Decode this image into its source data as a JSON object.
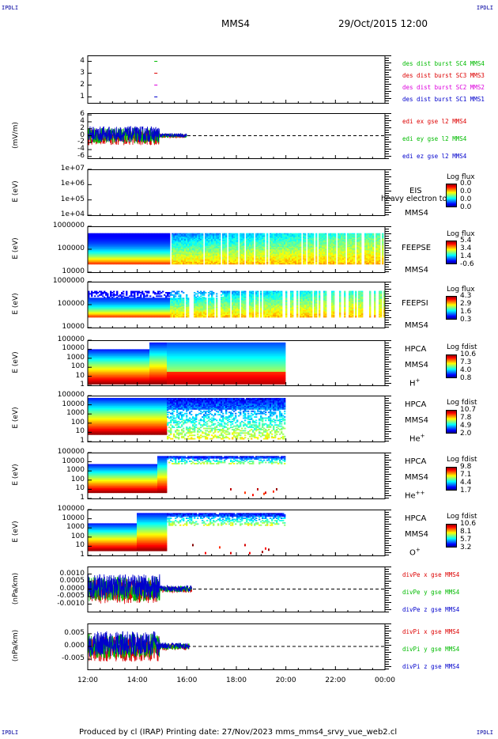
{
  "header": {
    "corner_left": "IPDLI",
    "corner_right": "IPDLI",
    "spacecraft": "MMS4",
    "date_time": "29/Oct/2015 12:00"
  },
  "footer": {
    "text": "Produced by cl (IRAP)   Printing date: 27/Nov/2023   mms_mms4_srvy_vue_web2.cl",
    "corner_left": "IPDLI",
    "corner_right": "IPDLI"
  },
  "x_axis": {
    "ticks": [
      "12:00",
      "14:00",
      "16:00",
      "18:00",
      "20:00",
      "22:00",
      "00:00"
    ]
  },
  "chart_data": [
    {
      "type": "scatter",
      "panel": "burst",
      "y_ticks": [
        "4",
        "3",
        "2",
        "1"
      ],
      "ylim": [
        0.5,
        4.5
      ],
      "series": [
        {
          "name": "des dist burst SC1 MMS1",
          "color": "#0000cc",
          "x_hours": [
            14.75
          ],
          "y": [
            1
          ]
        },
        {
          "name": "des dist burst SC2 MMS2",
          "color": "#dd00dd",
          "x_hours": [
            14.75
          ],
          "y": [
            2
          ]
        },
        {
          "name": "des dist burst SC3 MMS3",
          "color": "#dd0000",
          "x_hours": [
            14.75
          ],
          "y": [
            3
          ]
        },
        {
          "name": "des dist burst SC4 MMS4",
          "color": "#00bb00",
          "x_hours": [
            14.75
          ],
          "y": [
            4
          ]
        }
      ]
    },
    {
      "type": "line",
      "panel": "edi",
      "ylabel": "(mV/m)",
      "y_ticks": [
        "6",
        "4",
        "2",
        "0",
        "-2",
        "-4",
        "-6"
      ],
      "ylim": [
        -6.5,
        6.5
      ],
      "x_range_hours": [
        12.0,
        16.0
      ],
      "series": [
        {
          "name": "edi ex gse l2 MMS4",
          "color": "#dd0000"
        },
        {
          "name": "edi ey gse l2 MMS4",
          "color": "#00bb00"
        },
        {
          "name": "edi ez gse l2 MMS4",
          "color": "#0000cc"
        }
      ]
    },
    {
      "type": "heatmap",
      "panel": "eis",
      "ylabel": "E (eV)",
      "y_ticks": [
        "1e+07",
        "1e+06",
        "1e+05",
        "1e+04"
      ],
      "instrument": "EIS",
      "overlay_text": "heavy electron to",
      "spacecraft": "MMS4",
      "colorbar": {
        "title": "Log flux",
        "values": [
          "0.0",
          "0.0",
          "0.0",
          "0.0"
        ]
      }
    },
    {
      "type": "heatmap",
      "panel": "feeps_e",
      "ylabel": "E (eV)",
      "y_ticks": [
        "1000000",
        "100000",
        "10000"
      ],
      "instrument": "FEEPSE",
      "spacecraft": "MMS4",
      "colorbar": {
        "title": "Log flux",
        "values": [
          "5.4",
          "3.4",
          "1.4",
          "-0.6"
        ]
      }
    },
    {
      "type": "heatmap",
      "panel": "feeps_i",
      "ylabel": "E (eV)",
      "y_ticks": [
        "1000000",
        "100000",
        "10000"
      ],
      "instrument": "FEEPSI",
      "spacecraft": "MMS4",
      "colorbar": {
        "title": "Log flux",
        "values": [
          "4.3",
          "2.9",
          "1.6",
          "0.3"
        ]
      }
    },
    {
      "type": "heatmap",
      "panel": "hpca_h",
      "ylabel": "E (eV)",
      "y_ticks": [
        "100000",
        "10000",
        "1000",
        "100",
        "10",
        "1"
      ],
      "instrument": "HPCA",
      "spacecraft": "MMS4",
      "species": "H",
      "charge": "+",
      "data_end_hour": 20.0,
      "colorbar": {
        "title": "Log fdist",
        "values": [
          "10.6",
          "7.3",
          "4.0",
          "0.8"
        ]
      }
    },
    {
      "type": "heatmap",
      "panel": "hpca_he",
      "ylabel": "E (eV)",
      "y_ticks": [
        "100000",
        "10000",
        "1000",
        "100",
        "10",
        "1"
      ],
      "instrument": "HPCA",
      "spacecraft": "MMS4",
      "species": "He",
      "charge": "+",
      "data_end_hour": 20.0,
      "colorbar": {
        "title": "Log fdist",
        "values": [
          "10.7",
          "7.8",
          "4.9",
          "2.0"
        ]
      }
    },
    {
      "type": "heatmap",
      "panel": "hpca_hepp",
      "ylabel": "E (eV)",
      "y_ticks": [
        "100000",
        "10000",
        "1000",
        "100",
        "10",
        "1"
      ],
      "instrument": "HPCA",
      "spacecraft": "MMS4",
      "species": "He",
      "charge": "++",
      "data_end_hour": 20.0,
      "colorbar": {
        "title": "Log fdist",
        "values": [
          "9.8",
          "7.1",
          "4.4",
          "1.7"
        ]
      }
    },
    {
      "type": "heatmap",
      "panel": "hpca_o",
      "ylabel": "E (eV)",
      "y_ticks": [
        "100000",
        "10000",
        "1000",
        "100",
        "10",
        "1"
      ],
      "instrument": "HPCA",
      "spacecraft": "MMS4",
      "species": "O",
      "charge": "+",
      "data_end_hour": 20.0,
      "colorbar": {
        "title": "Log fdist",
        "values": [
          "10.6",
          "8.1",
          "5.7",
          "3.2"
        ]
      }
    },
    {
      "type": "line",
      "panel": "divpe",
      "ylabel": "(nPa/km)",
      "y_ticks": [
        "0.0010",
        "0.0005",
        "0.0000",
        "-0.0005",
        "-0.0010"
      ],
      "ylim": [
        -0.0015,
        0.0015
      ],
      "x_range_hours": [
        12.0,
        16.2
      ],
      "series": [
        {
          "name": "divPe x gse MMS4",
          "color": "#dd0000"
        },
        {
          "name": "divPe y gse MMS4",
          "color": "#00bb00"
        },
        {
          "name": "divPe z gse MMS4",
          "color": "#0000cc"
        }
      ]
    },
    {
      "type": "line",
      "panel": "divpi",
      "ylabel": "(nPa/km)",
      "y_ticks": [
        "0.005",
        "0.000",
        "-0.005"
      ],
      "ylim": [
        -0.009,
        0.009
      ],
      "x_range_hours": [
        12.0,
        16.1
      ],
      "series": [
        {
          "name": "divPi x gse MMS4",
          "color": "#dd0000"
        },
        {
          "name": "divPi y gse MMS4",
          "color": "#00bb00"
        },
        {
          "name": "divPi z gse MMS4",
          "color": "#0000cc"
        }
      ]
    }
  ]
}
